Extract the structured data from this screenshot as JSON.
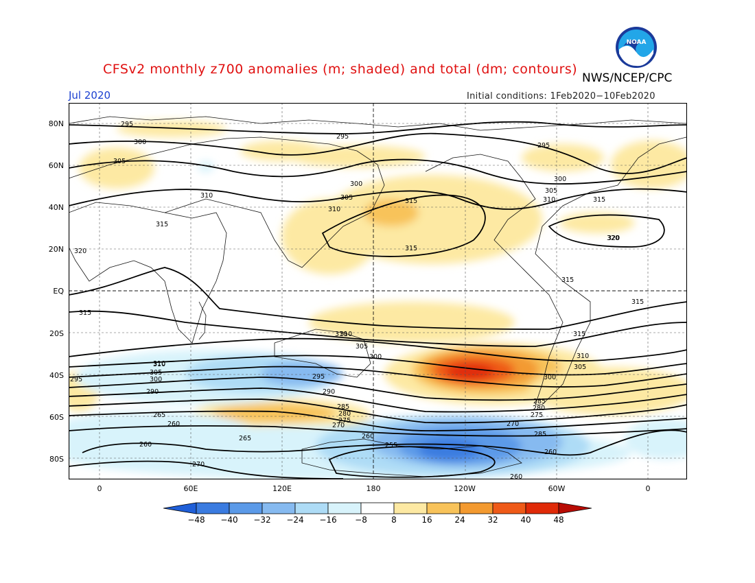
{
  "header": {
    "title": "CFSv2 monthly z700 anomalies (m; shaded) and total (dm; contours)",
    "agency": "NWS/NCEP/CPC",
    "month": "Jul 2020",
    "initial_conditions": "Initial conditions: 1Feb2020−10Feb2020",
    "logo_text": "NOAA"
  },
  "axes": {
    "y_labels": [
      "80N",
      "60N",
      "40N",
      "20N",
      "EQ",
      "20S",
      "40S",
      "60S",
      "80S"
    ],
    "x_labels": [
      "0",
      "60E",
      "120E",
      "180",
      "120W",
      "60W",
      "0"
    ]
  },
  "colorbar": {
    "labels": [
      "−48",
      "−40",
      "−32",
      "−24",
      "−16",
      "−8",
      "8",
      "16",
      "24",
      "32",
      "40",
      "48"
    ],
    "colors": [
      "#1f5fd8",
      "#3a7be0",
      "#5b9ae8",
      "#86baf0",
      "#aedcf6",
      "#d8f3fb",
      "#ffffff",
      "#fde9a3",
      "#f8c35a",
      "#f39a30",
      "#ef5a18",
      "#e02a08",
      "#b80c04"
    ]
  },
  "contour_labels": [
    {
      "text": "295"
    },
    {
      "text": "300"
    },
    {
      "text": "305"
    },
    {
      "text": "310"
    },
    {
      "text": "315"
    },
    {
      "text": "320"
    },
    {
      "text": "295"
    },
    {
      "text": "300"
    },
    {
      "text": "310"
    },
    {
      "text": "305"
    },
    {
      "text": "315"
    },
    {
      "text": "295"
    },
    {
      "text": "300"
    },
    {
      "text": "305"
    },
    {
      "text": "310"
    },
    {
      "text": "315"
    },
    {
      "text": "320"
    },
    {
      "text": "315"
    },
    {
      "text": "315"
    },
    {
      "text": "315"
    },
    {
      "text": "315"
    },
    {
      "text": "310"
    },
    {
      "text": "305"
    },
    {
      "text": "300"
    },
    {
      "text": "310"
    },
    {
      "text": "295"
    },
    {
      "text": "300"
    },
    {
      "text": "305"
    },
    {
      "text": "310"
    },
    {
      "text": "290"
    },
    {
      "text": "285"
    },
    {
      "text": "280"
    },
    {
      "text": "275"
    },
    {
      "text": "270"
    },
    {
      "text": "265"
    },
    {
      "text": "260"
    },
    {
      "text": "265"
    },
    {
      "text": "260"
    },
    {
      "text": "270"
    },
    {
      "text": "285"
    },
    {
      "text": "280"
    },
    {
      "text": "275"
    },
    {
      "text": "260"
    },
    {
      "text": "255"
    },
    {
      "text": "270"
    },
    {
      "text": "285"
    },
    {
      "text": "260"
    },
    {
      "text": "260"
    },
    {
      "text": "295"
    },
    {
      "text": "290"
    },
    {
      "text": "300"
    },
    {
      "text": "305"
    },
    {
      "text": "310"
    },
    {
      "text": "315"
    },
    {
      "text": "310"
    },
    {
      "text": "320"
    }
  ]
}
